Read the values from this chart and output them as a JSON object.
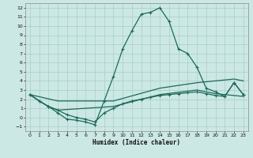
{
  "xlabel": "Humidex (Indice chaleur)",
  "background_color": "#cce8e4",
  "grid_color": "#a8ceca",
  "line_color": "#1a6b5a",
  "x_min": -0.5,
  "x_max": 23.5,
  "y_min": -1.5,
  "y_max": 12.5,
  "yticks": [
    -1,
    0,
    1,
    2,
    3,
    4,
    5,
    6,
    7,
    8,
    9,
    10,
    11,
    12
  ],
  "xticks": [
    0,
    1,
    2,
    3,
    4,
    5,
    6,
    7,
    8,
    9,
    10,
    11,
    12,
    13,
    14,
    15,
    16,
    17,
    18,
    19,
    20,
    21,
    22,
    23
  ],
  "line1_x": [
    0,
    1,
    2,
    3,
    4,
    5,
    6,
    7,
    8,
    9,
    10,
    11,
    12,
    13,
    14,
    15,
    16,
    17,
    18,
    19,
    20,
    21,
    22,
    23
  ],
  "line1_y": [
    2.5,
    1.8,
    1.2,
    0.5,
    -0.2,
    -0.3,
    -0.5,
    -0.8,
    1.8,
    4.5,
    7.5,
    9.5,
    11.3,
    11.5,
    12.0,
    10.5,
    7.5,
    7.0,
    5.5,
    3.2,
    2.8,
    2.3,
    3.8,
    2.5
  ],
  "line2_x": [
    0,
    3,
    9,
    14,
    18,
    22,
    23
  ],
  "line2_y": [
    2.5,
    1.8,
    1.8,
    3.2,
    3.8,
    4.2,
    4.0
  ],
  "line3_x": [
    0,
    1,
    2,
    3,
    4,
    5,
    6,
    7,
    8,
    9,
    10,
    11,
    12,
    13,
    14,
    15,
    16,
    17,
    18,
    19,
    20,
    21,
    22,
    23
  ],
  "line3_y": [
    2.5,
    1.8,
    1.2,
    0.8,
    0.3,
    0.0,
    -0.2,
    -0.5,
    0.5,
    1.0,
    1.5,
    1.8,
    2.0,
    2.2,
    2.4,
    2.5,
    2.6,
    2.7,
    2.8,
    2.6,
    2.4,
    2.3,
    3.8,
    2.5
  ],
  "line4_x": [
    0,
    1,
    2,
    3,
    9,
    14,
    18,
    19,
    20,
    21,
    22,
    23
  ],
  "line4_y": [
    2.5,
    1.8,
    1.2,
    0.8,
    1.2,
    2.5,
    3.0,
    2.8,
    2.6,
    2.5,
    2.4,
    2.3
  ]
}
